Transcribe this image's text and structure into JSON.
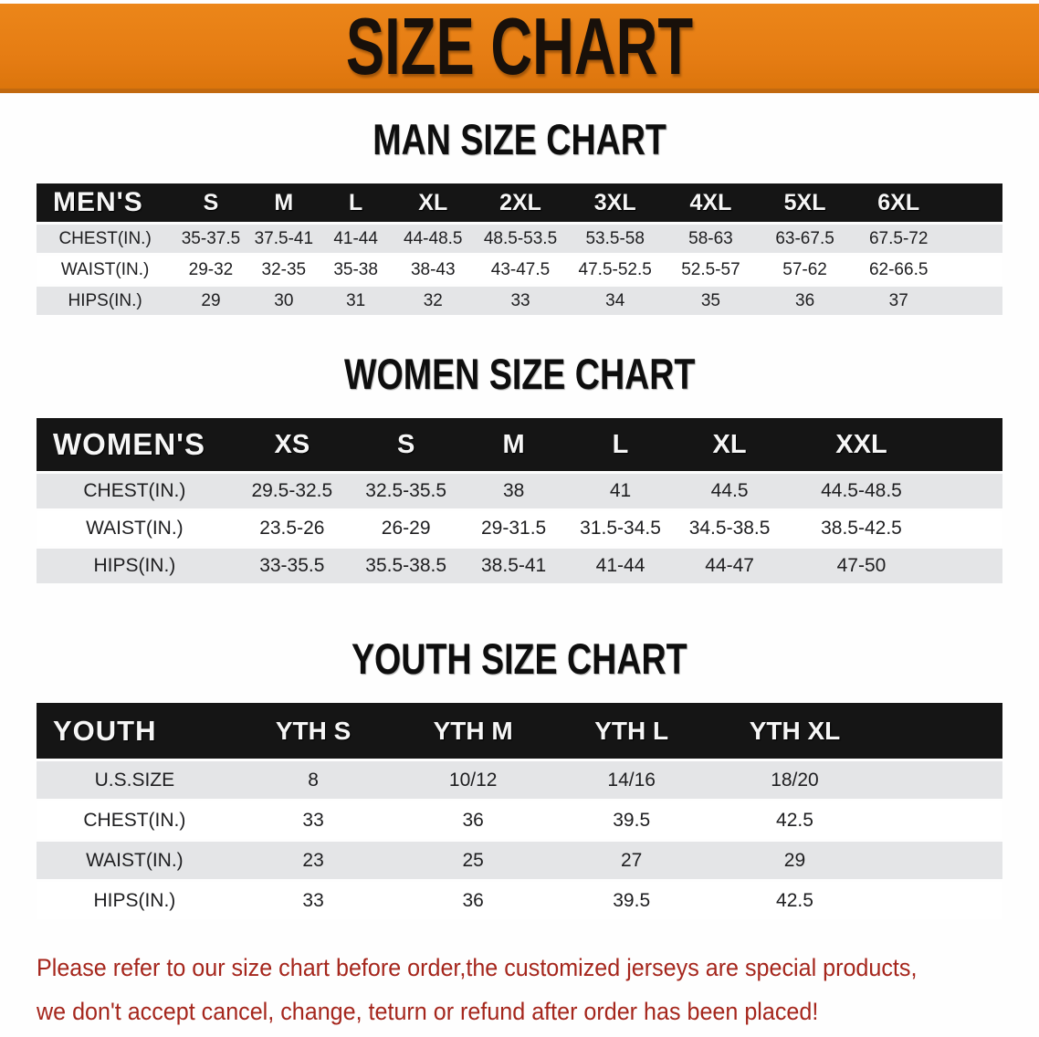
{
  "banner": {
    "title": "SIZE CHART"
  },
  "colors": {
    "banner_orange": "#e57c13",
    "banner_edge": "#c2690f",
    "header_bar_black": "#151515",
    "row_stripe_gray": "#e4e5e7",
    "notice_red": "#a5261c",
    "title_black": "#0e0e0e"
  },
  "sections": [
    {
      "title": "MAN SIZE CHART",
      "table": {
        "header_label": "MEN'S",
        "columns": [
          "S",
          "M",
          "L",
          "XL",
          "2XL",
          "3XL",
          "4XL",
          "5XL",
          "6XL"
        ],
        "rows": [
          {
            "label": "CHEST(IN.)",
            "values": [
              "35-37.5",
              "37.5-41",
              "41-44",
              "44-48.5",
              "48.5-53.5",
              "53.5-58",
              "58-63",
              "63-67.5",
              "67.5-72"
            ]
          },
          {
            "label": "WAIST(IN.)",
            "values": [
              "29-32",
              "32-35",
              "35-38",
              "38-43",
              "43-47.5",
              "47.5-52.5",
              "52.5-57",
              "57-62",
              "62-66.5"
            ]
          },
          {
            "label": "HIPS(IN.)",
            "values": [
              "29",
              "30",
              "31",
              "32",
              "33",
              "34",
              "35",
              "36",
              "37"
            ]
          }
        ]
      }
    },
    {
      "title": "WOMEN SIZE CHART",
      "table": {
        "header_label": "WOMEN'S",
        "columns": [
          "XS",
          "S",
          "M",
          "L",
          "XL",
          "XXL"
        ],
        "rows": [
          {
            "label": "CHEST(IN.)",
            "values": [
              "29.5-32.5",
              "32.5-35.5",
              "38",
              "41",
              "44.5",
              "44.5-48.5"
            ]
          },
          {
            "label": "WAIST(IN.)",
            "values": [
              "23.5-26",
              "26-29",
              "29-31.5",
              "31.5-34.5",
              "34.5-38.5",
              "38.5-42.5"
            ]
          },
          {
            "label": "HIPS(IN.)",
            "values": [
              "33-35.5",
              "35.5-38.5",
              "38.5-41",
              "41-44",
              "44-47",
              "47-50"
            ]
          }
        ]
      }
    },
    {
      "title": "YOUTH SIZE CHART",
      "table": {
        "header_label": "YOUTH",
        "columns": [
          "YTH S",
          "YTH M",
          "YTH L",
          "YTH XL"
        ],
        "rows": [
          {
            "label": "U.S.SIZE",
            "values": [
              "8",
              "10/12",
              "14/16",
              "18/20"
            ]
          },
          {
            "label": "CHEST(IN.)",
            "values": [
              "33",
              "36",
              "39.5",
              "42.5"
            ]
          },
          {
            "label": "WAIST(IN.)",
            "values": [
              "23",
              "25",
              "27",
              "29"
            ]
          },
          {
            "label": "HIPS(IN.)",
            "values": [
              "33",
              "36",
              "39.5",
              "42.5"
            ]
          }
        ]
      }
    }
  ],
  "footer": {
    "lines": [
      "Please refer to our size chart before order,the customized jerseys are special products,",
      "we don't accept cancel, change, teturn or refund after order has been placed!"
    ]
  }
}
